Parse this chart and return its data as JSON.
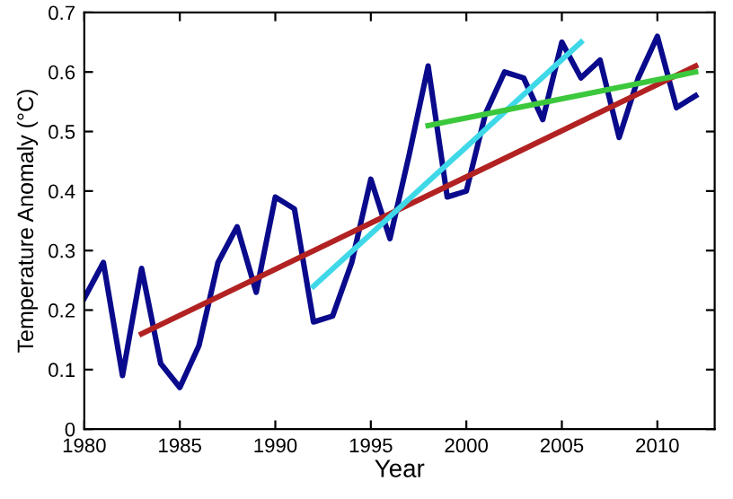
{
  "chart_data": {
    "type": "line",
    "xlabel": "Year",
    "ylabel": "Temperature Anomaly (°C)",
    "xlim": [
      1980,
      2013
    ],
    "xticks": [
      1980,
      1985,
      1990,
      1995,
      2000,
      2005,
      2010
    ],
    "ylim": [
      0,
      0.7
    ],
    "yticks": [
      0,
      0.1,
      0.2,
      0.3,
      0.4,
      0.5,
      0.6,
      0.7
    ],
    "grid": false,
    "series": [
      {
        "color": "#0a0a8c",
        "x": [
          1980,
          1981,
          1982,
          1983,
          1984,
          1985,
          1986,
          1987,
          1988,
          1989,
          1990,
          1991,
          1992,
          1993,
          1994,
          1995,
          1996,
          1997,
          1998,
          1999,
          2000,
          2001,
          2002,
          2003,
          2004,
          2005,
          2006,
          2007,
          2008,
          2009,
          2010,
          2011,
          2012
        ],
        "values": [
          0.22,
          0.28,
          0.09,
          0.27,
          0.11,
          0.07,
          0.14,
          0.28,
          0.34,
          0.23,
          0.39,
          0.37,
          0.18,
          0.19,
          0.28,
          0.42,
          0.32,
          0.46,
          0.61,
          0.39,
          0.4,
          0.53,
          0.6,
          0.59,
          0.52,
          0.65,
          0.59,
          0.62,
          0.49,
          0.59,
          0.66,
          0.54,
          0.56
        ]
      },
      {
        "color": "#b22222",
        "x": [
          1983,
          2012
        ],
        "values": [
          0.16,
          0.61
        ]
      },
      {
        "color": "#3fd8e8",
        "x": [
          1992,
          2006
        ],
        "values": [
          0.24,
          0.65
        ]
      },
      {
        "color": "#3cc83c",
        "x": [
          1998,
          2012
        ],
        "values": [
          0.51,
          0.6
        ]
      }
    ]
  }
}
